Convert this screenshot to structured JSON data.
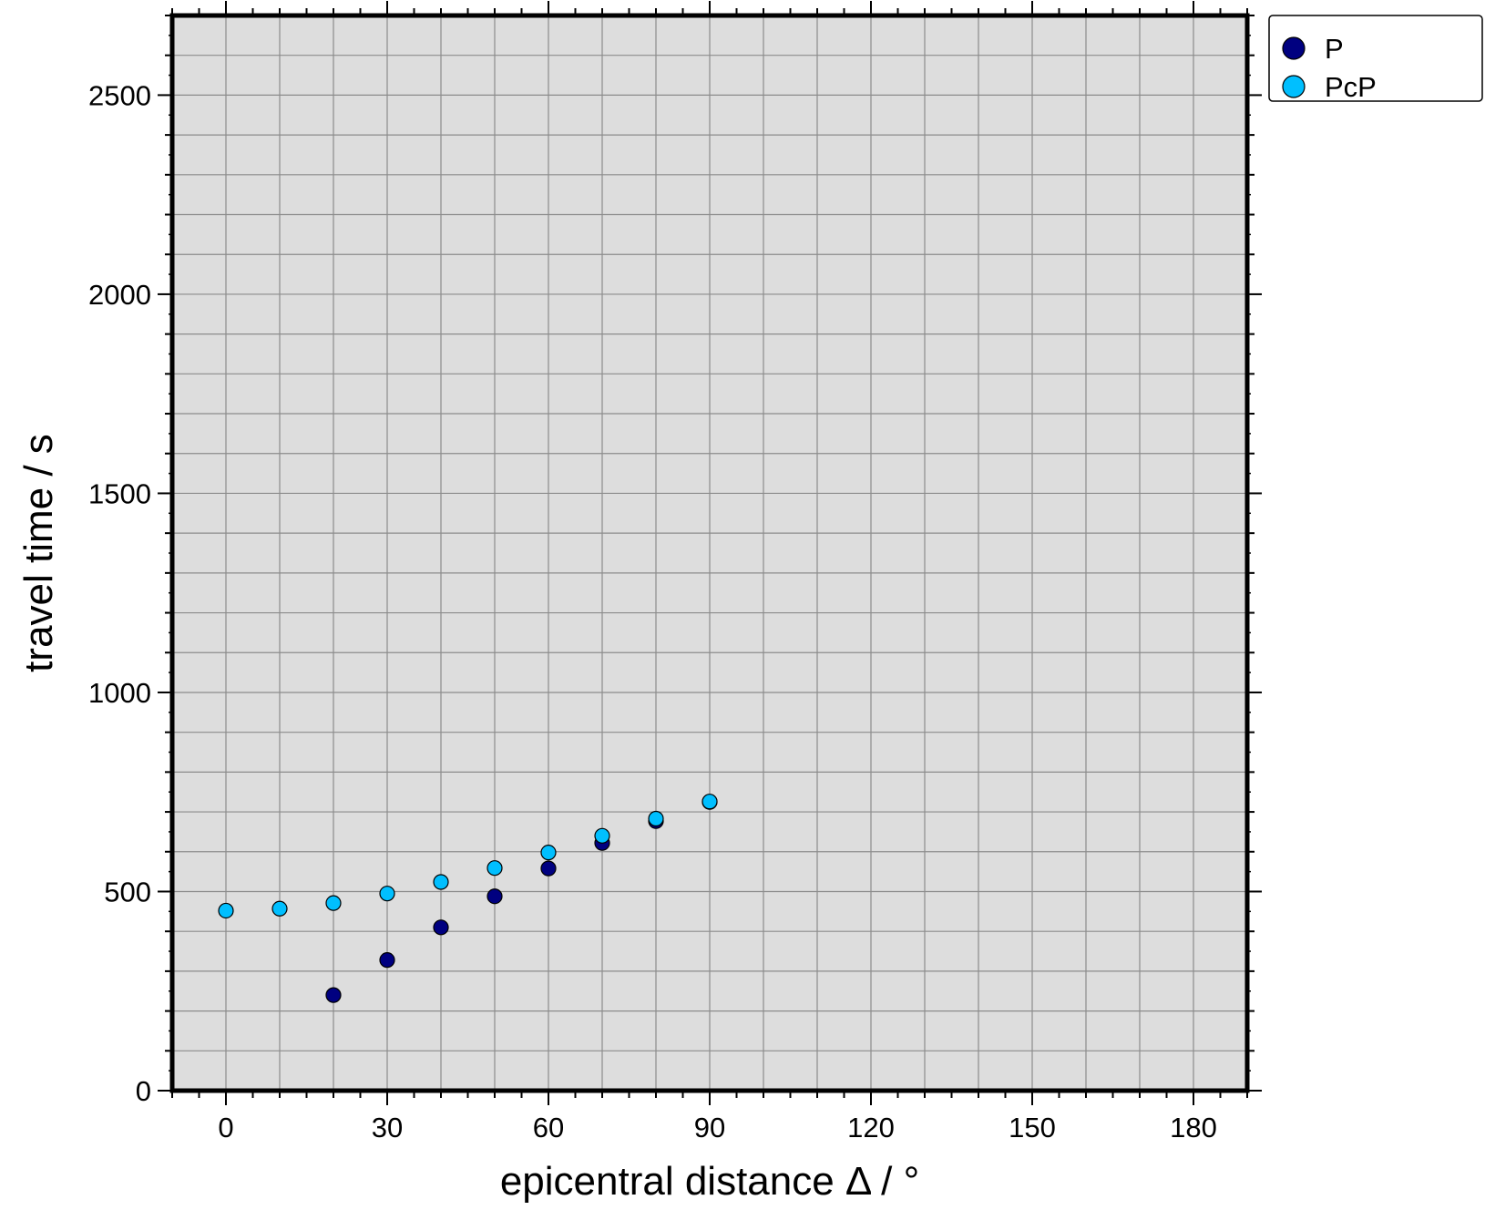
{
  "chart_data": {
    "type": "scatter",
    "xlabel": "epicentral distance Δ / °",
    "ylabel": "travel time / s",
    "xlim": [
      -10,
      190
    ],
    "ylim": [
      0,
      2700
    ],
    "x_ticks": [
      0,
      30,
      60,
      90,
      120,
      150,
      180
    ],
    "y_ticks": [
      0,
      500,
      1000,
      1500,
      2000,
      2500
    ],
    "x_grid_step": 10,
    "y_grid_step": 100,
    "grid": true,
    "legend_position": "outside-top-right",
    "plot_background": "#dddddd",
    "series": [
      {
        "name": "P",
        "color": "#000080",
        "points": [
          {
            "x": 20,
            "y": 240
          },
          {
            "x": 30,
            "y": 328
          },
          {
            "x": 40,
            "y": 410
          },
          {
            "x": 50,
            "y": 488
          },
          {
            "x": 60,
            "y": 558
          },
          {
            "x": 70,
            "y": 622
          },
          {
            "x": 80,
            "y": 677
          },
          {
            "x": 90,
            "y": 725
          }
        ]
      },
      {
        "name": "PcP",
        "color": "#00bfff",
        "points": [
          {
            "x": 0,
            "y": 452
          },
          {
            "x": 10,
            "y": 457
          },
          {
            "x": 20,
            "y": 471
          },
          {
            "x": 30,
            "y": 495
          },
          {
            "x": 40,
            "y": 524
          },
          {
            "x": 50,
            "y": 559
          },
          {
            "x": 60,
            "y": 598
          },
          {
            "x": 70,
            "y": 640
          },
          {
            "x": 80,
            "y": 683
          },
          {
            "x": 90,
            "y": 726
          }
        ]
      }
    ]
  }
}
